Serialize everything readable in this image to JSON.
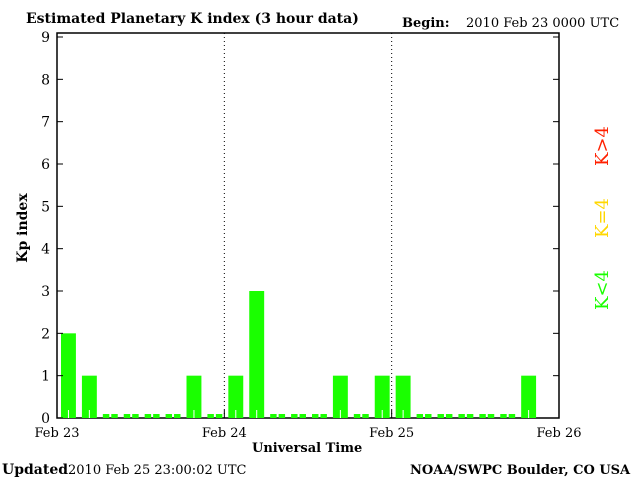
{
  "chart_data": {
    "type": "bar",
    "title": "Estimated Planetary K index (3 hour data)",
    "begin_label": "Begin:",
    "begin_value": "2010 Feb 23 0000 UTC",
    "xlabel": "Universal Time",
    "ylabel": "Kp index",
    "ylim": [
      0,
      9
    ],
    "yticks": [
      "0",
      "1",
      "2",
      "3",
      "4",
      "5",
      "6",
      "7",
      "8",
      "9"
    ],
    "xticks": [
      "Feb 23",
      "Feb 24",
      "Feb 25",
      "Feb 26"
    ],
    "values": [
      2,
      1,
      0,
      0,
      0,
      0,
      1,
      0,
      1,
      3,
      0,
      0,
      0,
      1,
      0,
      1,
      1,
      0,
      0,
      0,
      0,
      0,
      1
    ],
    "bar_color": "#1aff00",
    "legend": [
      {
        "label": "K<4",
        "color": "#1aff00"
      },
      {
        "label": "K=4",
        "color": "#ffd700"
      },
      {
        "label": "K>4",
        "color": "#ff2000"
      }
    ]
  },
  "footer": {
    "updated_label": "Updated",
    "updated_value": "2010 Feb 25 23:00:02 UTC",
    "source": "NOAA/SWPC Boulder, CO USA"
  }
}
